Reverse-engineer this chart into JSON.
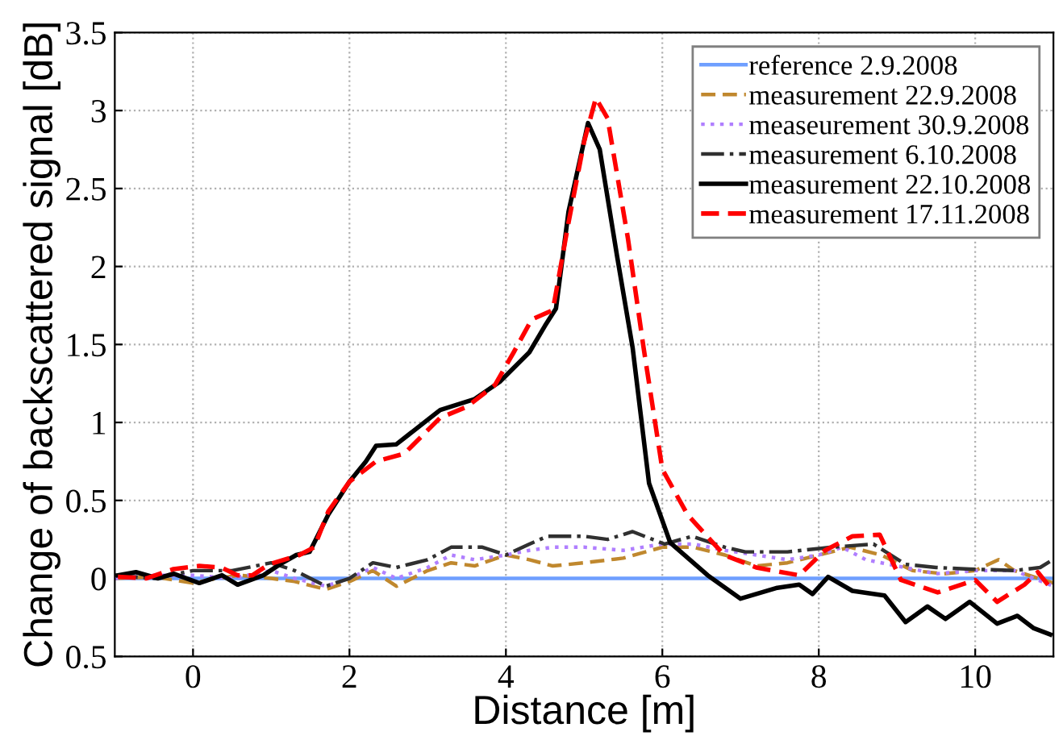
{
  "chart_data": {
    "type": "line",
    "xlabel": "Distance [m]",
    "ylabel": "Change of backscattered signal [dB]",
    "xlim": [
      -1,
      11
    ],
    "xticks": [
      0,
      2,
      4,
      6,
      8,
      10
    ],
    "ylim": [
      -0.5,
      3.5
    ],
    "yticks": [
      {
        "value": -0.5,
        "label": "0.5"
      },
      0,
      0.5,
      1,
      1.5,
      2,
      2.5,
      3,
      3.5
    ],
    "grid": true,
    "legend": "top right",
    "series": [
      {
        "name": "reference 2.9.2008",
        "color": "#6f9fff",
        "line_style": "solid",
        "x": [
          -1,
          11
        ],
        "values": [
          0,
          0
        ]
      },
      {
        "name": "measurement 22.9.2008",
        "color": "#c0882e",
        "line_style": "dashed",
        "x": [
          -1,
          -0.5,
          0,
          0.3,
          0.6,
          1.0,
          1.3,
          1.7,
          2.0,
          2.3,
          2.6,
          3.0,
          3.3,
          3.6,
          4.0,
          4.3,
          4.6,
          5.0,
          5.5,
          6.0,
          6.4,
          6.8,
          7.2,
          7.6,
          8.0,
          8.4,
          8.8,
          9.2,
          9.6,
          10.0,
          10.3,
          10.5,
          11
        ],
        "values": [
          0.0,
          0.01,
          -0.03,
          0.0,
          0.02,
          0.0,
          -0.02,
          -0.07,
          -0.02,
          0.05,
          -0.05,
          0.05,
          0.1,
          0.08,
          0.15,
          0.12,
          0.08,
          0.1,
          0.13,
          0.2,
          0.2,
          0.15,
          0.08,
          0.1,
          0.15,
          0.2,
          0.15,
          0.05,
          0.03,
          0.05,
          0.12,
          0.05,
          -0.03
        ]
      },
      {
        "name": "measeurement 30.9.2008",
        "color": "#b07fff",
        "line_style": "dotted",
        "x": [
          -1,
          -0.5,
          0,
          0.5,
          1.0,
          1.3,
          1.7,
          2.0,
          2.3,
          2.6,
          3.0,
          3.3,
          3.6,
          4.0,
          4.3,
          4.6,
          5.0,
          5.5,
          6.0,
          6.4,
          6.8,
          7.2,
          7.6,
          8.0,
          8.3,
          8.6,
          9.0,
          9.5,
          10.0,
          10.5,
          11
        ],
        "values": [
          0.0,
          0.02,
          0.02,
          0.0,
          0.05,
          0.0,
          -0.05,
          0.0,
          0.07,
          0.0,
          0.07,
          0.15,
          0.12,
          0.15,
          0.18,
          0.2,
          0.2,
          0.18,
          0.22,
          0.22,
          0.18,
          0.15,
          0.12,
          0.15,
          0.2,
          0.12,
          0.08,
          0.03,
          0.05,
          0.05,
          -0.05
        ]
      },
      {
        "name": "measurement 6.10.2008",
        "color": "#303030",
        "line_style": "dashdot",
        "x": [
          -1,
          -0.5,
          0,
          0.5,
          1.0,
          1.3,
          1.7,
          2.0,
          2.3,
          2.6,
          3.0,
          3.3,
          3.7,
          4.0,
          4.3,
          4.53,
          5.0,
          5.3,
          5.62,
          6.03,
          6.38,
          6.8,
          7.06,
          7.6,
          8.16,
          8.7,
          9.11,
          9.5,
          9.93,
          10.5,
          10.83,
          10.96
        ],
        "values": [
          0.02,
          0.0,
          0.05,
          0.05,
          0.1,
          0.05,
          -0.05,
          0.0,
          0.1,
          0.07,
          0.12,
          0.2,
          0.2,
          0.15,
          0.22,
          0.27,
          0.27,
          0.25,
          0.3,
          0.22,
          0.27,
          0.2,
          0.17,
          0.17,
          0.2,
          0.22,
          0.09,
          0.07,
          0.06,
          0.05,
          0.07,
          0.11
        ]
      },
      {
        "name": "measurement 22.10.2008",
        "color": "#000000",
        "line_style": "solid",
        "x": [
          -0.96,
          -0.73,
          -0.45,
          -0.25,
          0.08,
          0.37,
          0.57,
          0.9,
          1.11,
          1.32,
          1.49,
          1.73,
          2.0,
          2.21,
          2.34,
          2.6,
          3.16,
          3.6,
          3.92,
          4.3,
          4.5,
          4.64,
          4.8,
          5.05,
          5.2,
          5.42,
          5.62,
          5.83,
          6.1,
          6.58,
          7.0,
          7.47,
          7.75,
          7.92,
          8.12,
          8.43,
          8.84,
          9.11,
          9.39,
          9.62,
          9.93,
          10.28,
          10.54,
          10.75,
          10.96
        ],
        "values": [
          0.02,
          0.04,
          0.0,
          0.03,
          -0.03,
          0.02,
          -0.04,
          0.02,
          0.09,
          0.15,
          0.17,
          0.41,
          0.62,
          0.75,
          0.85,
          0.86,
          1.08,
          1.15,
          1.26,
          1.45,
          1.62,
          1.73,
          2.35,
          2.92,
          2.75,
          2.07,
          1.48,
          0.61,
          0.23,
          0.02,
          -0.13,
          -0.06,
          -0.04,
          -0.1,
          0.01,
          -0.08,
          -0.11,
          -0.28,
          -0.18,
          -0.26,
          -0.15,
          -0.29,
          -0.24,
          -0.32,
          -0.36
        ]
      },
      {
        "name": "measurement 17.11.2008",
        "color": "#ff0000",
        "line_style": "dashed",
        "x": [
          -0.96,
          -0.6,
          -0.25,
          0.08,
          0.36,
          0.57,
          0.76,
          0.97,
          1.36,
          1.55,
          1.73,
          2.0,
          2.34,
          2.7,
          3.16,
          3.5,
          3.86,
          4.1,
          4.33,
          4.6,
          4.8,
          5.0,
          5.15,
          5.3,
          5.56,
          5.76,
          6.0,
          6.32,
          6.79,
          7.2,
          7.75,
          8.08,
          8.43,
          8.78,
          9.05,
          9.52,
          10.0,
          10.28,
          10.63,
          10.8,
          10.96
        ],
        "values": [
          0.01,
          0.0,
          0.06,
          0.08,
          0.07,
          0.02,
          0.02,
          0.09,
          0.15,
          0.2,
          0.43,
          0.62,
          0.75,
          0.8,
          1.03,
          1.1,
          1.24,
          1.45,
          1.66,
          1.72,
          2.28,
          2.8,
          3.08,
          2.95,
          2.18,
          1.48,
          0.7,
          0.41,
          0.15,
          0.07,
          0.02,
          0.18,
          0.27,
          0.28,
          -0.01,
          -0.09,
          -0.01,
          -0.15,
          -0.04,
          0.04,
          -0.06
        ]
      }
    ]
  }
}
